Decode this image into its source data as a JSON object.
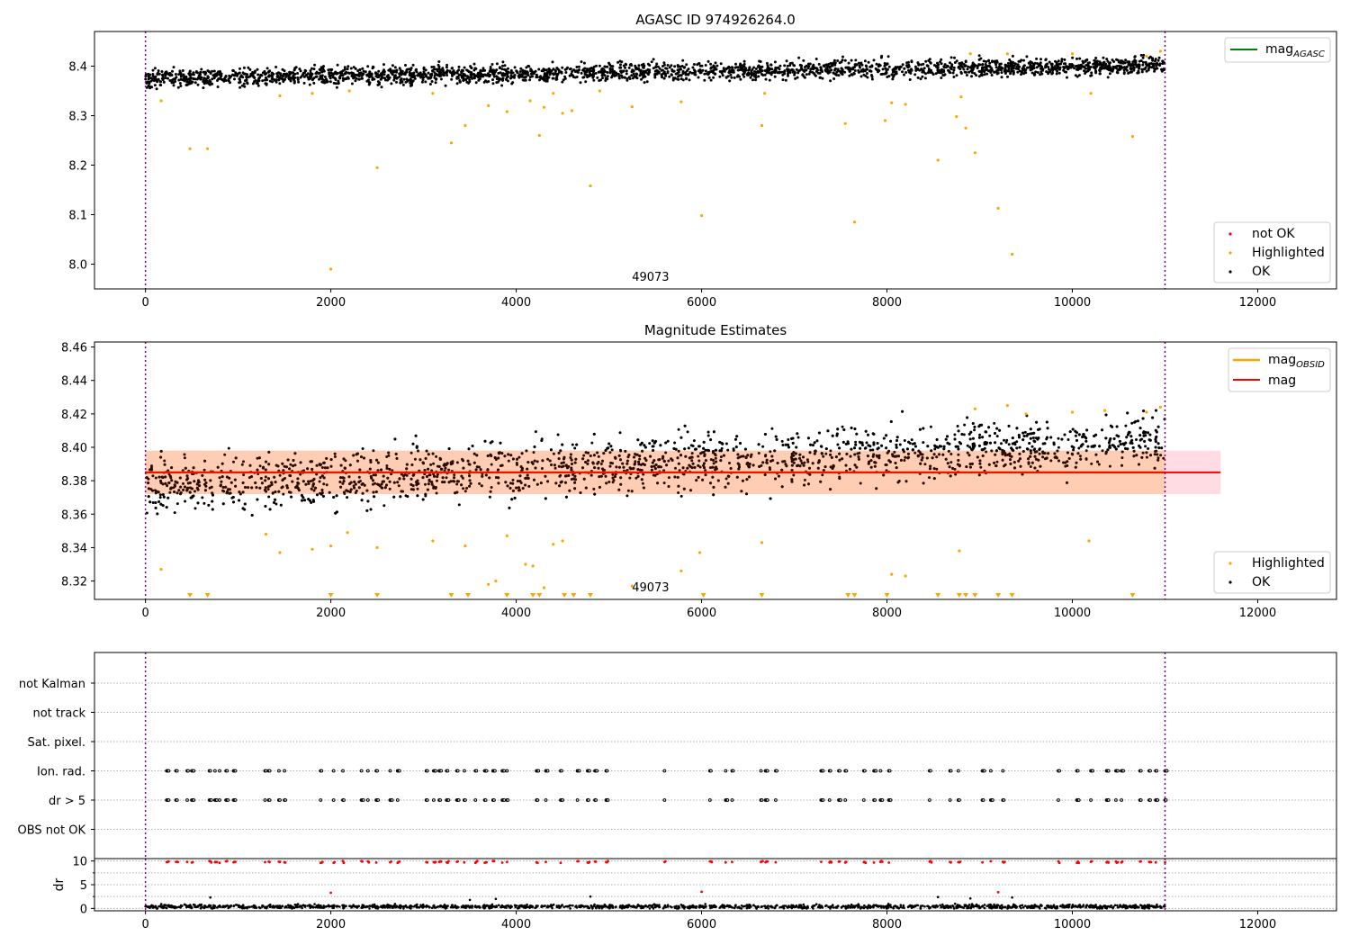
{
  "chart_data": [
    {
      "type": "scatter",
      "panel": "top",
      "title": "AGASC ID 974926264.0",
      "xlim": [
        -550,
        12850
      ],
      "ylim": [
        7.95,
        8.47
      ],
      "x_ticks": [
        0,
        2000,
        4000,
        6000,
        8000,
        10000,
        12000
      ],
      "y_ticks": [
        8.0,
        8.1,
        8.2,
        8.3,
        8.4
      ],
      "y_tick_labels": [
        "8.0",
        "8.1",
        "8.2",
        "8.3",
        "8.4"
      ],
      "obsid_label": "49073",
      "obsid_label_x": 5450,
      "obs_boundaries": [
        0,
        11000
      ],
      "legend_lines": [
        {
          "label": "mag",
          "subscript": "AGASC",
          "color": "#008000"
        }
      ],
      "legend_markers": [
        {
          "label": "not OK",
          "color": "#ff0000"
        },
        {
          "label": "Highlighted",
          "color": "#ffa500"
        },
        {
          "label": "OK",
          "color": "#000000"
        }
      ],
      "series": [
        {
          "name": "OK",
          "color": "#000000",
          "trend": {
            "x": [
              0,
              11000
            ],
            "y": [
              8.375,
              8.402
            ]
          },
          "spread": 0.009,
          "n_points": 2600
        },
        {
          "name": "Highlighted",
          "color": "#ffa500",
          "points": [
            [
              170,
              8.33
            ],
            [
              480,
              8.233
            ],
            [
              670,
              8.233
            ],
            [
              2000,
              7.99
            ],
            [
              2500,
              8.195
            ],
            [
              3300,
              8.245
            ],
            [
              3450,
              8.28
            ],
            [
              3700,
              8.32
            ],
            [
              3900,
              8.308
            ],
            [
              4150,
              8.33
            ],
            [
              4250,
              8.26
            ],
            [
              4300,
              8.317
            ],
            [
              4400,
              8.345
            ],
            [
              4500,
              8.305
            ],
            [
              4600,
              8.31
            ],
            [
              4800,
              8.158
            ],
            [
              5250,
              8.318
            ],
            [
              5780,
              8.328
            ],
            [
              6000,
              8.098
            ],
            [
              6650,
              8.28
            ],
            [
              6680,
              8.345
            ],
            [
              7550,
              8.284
            ],
            [
              7650,
              8.085
            ],
            [
              7980,
              8.29
            ],
            [
              8050,
              8.326
            ],
            [
              8200,
              8.323
            ],
            [
              8550,
              8.21
            ],
            [
              8750,
              8.298
            ],
            [
              8800,
              8.338
            ],
            [
              8850,
              8.275
            ],
            [
              8950,
              8.225
            ],
            [
              9200,
              8.113
            ],
            [
              9350,
              8.02
            ],
            [
              10200,
              8.345
            ],
            [
              10650,
              8.258
            ],
            [
              4900,
              8.35
            ],
            [
              3100,
              8.345
            ],
            [
              2200,
              8.35
            ],
            [
              1800,
              8.345
            ],
            [
              1450,
              8.34
            ],
            [
              8900,
              8.425
            ],
            [
              9300,
              8.425
            ],
            [
              10000,
              8.425
            ],
            [
              10800,
              8.42
            ],
            [
              10950,
              8.43
            ]
          ]
        }
      ]
    },
    {
      "type": "scatter",
      "panel": "middle",
      "title": "Magnitude Estimates",
      "xlim": [
        -550,
        12850
      ],
      "ylim": [
        8.309,
        8.463
      ],
      "x_ticks": [
        0,
        2000,
        4000,
        6000,
        8000,
        10000,
        12000
      ],
      "y_ticks": [
        8.32,
        8.34,
        8.36,
        8.38,
        8.4,
        8.42,
        8.44,
        8.46
      ],
      "y_tick_labels": [
        "8.32",
        "8.34",
        "8.36",
        "8.38",
        "8.40",
        "8.42",
        "8.44",
        "8.46"
      ],
      "obsid_label": "49073",
      "obsid_label_x": 5450,
      "obs_boundaries": [
        0,
        11000
      ],
      "mag_line": {
        "label": "mag",
        "color": "#ff0000",
        "value": 8.385,
        "x_range": [
          0,
          11600
        ],
        "band": [
          8.372,
          8.398
        ],
        "band_color": "#ffb0c0"
      },
      "mag_obsid": {
        "label": "mag",
        "subscript": "OBSID",
        "color": "#ffa500",
        "value": 8.385,
        "x_range": [
          0,
          11000
        ],
        "band": [
          8.372,
          8.398
        ],
        "band_color": "#ffc8a0"
      },
      "legend_markers": [
        {
          "label": "Highlighted",
          "color": "#ffa500"
        },
        {
          "label": "OK",
          "color": "#000000"
        }
      ],
      "series": [
        {
          "name": "OK",
          "color": "#000000",
          "trend": {
            "x": [
              0,
              11000
            ],
            "y": [
              8.377,
              8.404
            ]
          },
          "spread": 0.008,
          "n_points": 3000
        },
        {
          "name": "Highlighted",
          "color": "#ffa500",
          "points": [
            [
              170,
              8.327
            ],
            [
              1300,
              8.348
            ],
            [
              1450,
              8.337
            ],
            [
              1800,
              8.339
            ],
            [
              2000,
              8.341
            ],
            [
              2180,
              8.349
            ],
            [
              2500,
              8.34
            ],
            [
              3100,
              8.344
            ],
            [
              3450,
              8.341
            ],
            [
              3700,
              8.318
            ],
            [
              3780,
              8.32
            ],
            [
              3900,
              8.347
            ],
            [
              4100,
              8.33
            ],
            [
              4180,
              8.329
            ],
            [
              4300,
              8.316
            ],
            [
              4400,
              8.342
            ],
            [
              4500,
              8.344
            ],
            [
              5250,
              8.317
            ],
            [
              5780,
              8.326
            ],
            [
              5980,
              8.337
            ],
            [
              6650,
              8.343
            ],
            [
              8050,
              8.324
            ],
            [
              8200,
              8.323
            ],
            [
              8780,
              8.338
            ],
            [
              10180,
              8.344
            ],
            [
              8950,
              8.423
            ],
            [
              9300,
              8.425
            ],
            [
              10000,
              8.421
            ],
            [
              10350,
              8.422
            ],
            [
              10800,
              8.421
            ],
            [
              10950,
              8.424
            ],
            [
              9500,
              8.42
            ]
          ]
        },
        {
          "name": "Highlighted (below range)",
          "color": "#ffa500",
          "marker": "triangle-down",
          "x": [
            480,
            670,
            2000,
            2500,
            3300,
            3480,
            3900,
            4180,
            4250,
            4520,
            4620,
            4800,
            6020,
            6650,
            7580,
            7650,
            8000,
            8550,
            8780,
            8850,
            8950,
            9200,
            9350,
            10650
          ]
        }
      ]
    },
    {
      "type": "scatter",
      "panel": "flags",
      "xlim": [
        -550,
        12850
      ],
      "categories": [
        "not Kalman",
        "not track",
        "Sat. pixel.",
        "Ion. rad.",
        "dr > 5",
        "OBS not OK"
      ],
      "flag_x": [
        230,
        330,
        450,
        500,
        690,
        750,
        800,
        870,
        950,
        1290,
        1330,
        1440,
        1500,
        1890,
        2030,
        2130,
        2330,
        2400,
        2490,
        2640,
        2720,
        3030,
        3110,
        3170,
        3250,
        3360,
        3440,
        3560,
        3660,
        3750,
        3850,
        3900,
        4220,
        4320,
        4480,
        4660,
        4770,
        4850,
        4970,
        5600,
        6090,
        6260,
        6330,
        6640,
        6690,
        6800,
        7290,
        7380,
        7480,
        7550,
        7750,
        7860,
        7930,
        8020,
        8460,
        8680,
        8770,
        9030,
        9120,
        9250,
        9850,
        10050,
        10200,
        10370,
        10470,
        10530,
        10730,
        10830,
        10900,
        11000
      ],
      "flag_rows": [
        "Ion. rad.",
        "dr > 5"
      ]
    },
    {
      "type": "scatter",
      "panel": "dr",
      "ylabel": "dr",
      "xlim": [
        -550,
        12850
      ],
      "ylim": [
        -0.5,
        10.5
      ],
      "x_ticks": [
        0,
        2000,
        4000,
        6000,
        8000,
        10000,
        12000
      ],
      "y_ticks": [
        0,
        5,
        10
      ],
      "series": [
        {
          "name": "OK",
          "color": "#000000",
          "typical": 0.4,
          "n_points": 1500,
          "outliers": [
            [
              700,
              2.3
            ],
            [
              3500,
              1.8
            ],
            [
              3780,
              2.0
            ],
            [
              4800,
              2.5
            ],
            [
              8550,
              2.4
            ],
            [
              9350,
              2.3
            ],
            [
              8900,
              2.1
            ]
          ]
        },
        {
          "name": "not OK",
          "color": "#ff0000",
          "points": [
            [
              2000,
              3.3
            ],
            [
              6000,
              3.5
            ],
            [
              9200,
              3.4
            ]
          ],
          "capped_value": 10
        }
      ]
    }
  ]
}
